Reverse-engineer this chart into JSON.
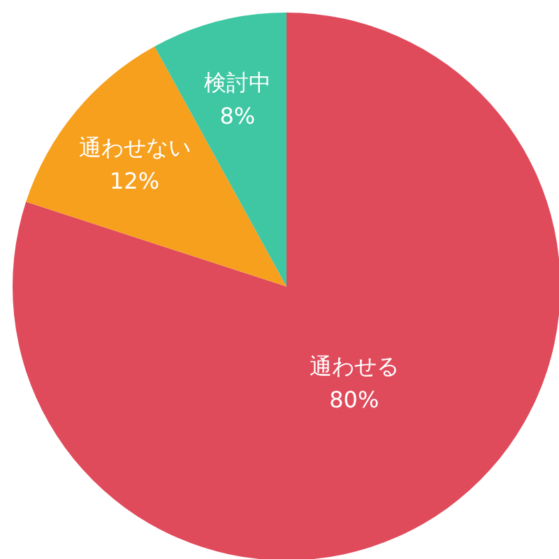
{
  "chart_data": {
    "type": "pie",
    "categories": [
      "通わせる",
      "通わせない",
      "検討中"
    ],
    "values": [
      80,
      12,
      8
    ],
    "colors": [
      "#e04b5c",
      "#f6a01e",
      "#3ec7a2"
    ],
    "value_labels": [
      "80%",
      "12%",
      "8%"
    ],
    "legend": false
  }
}
